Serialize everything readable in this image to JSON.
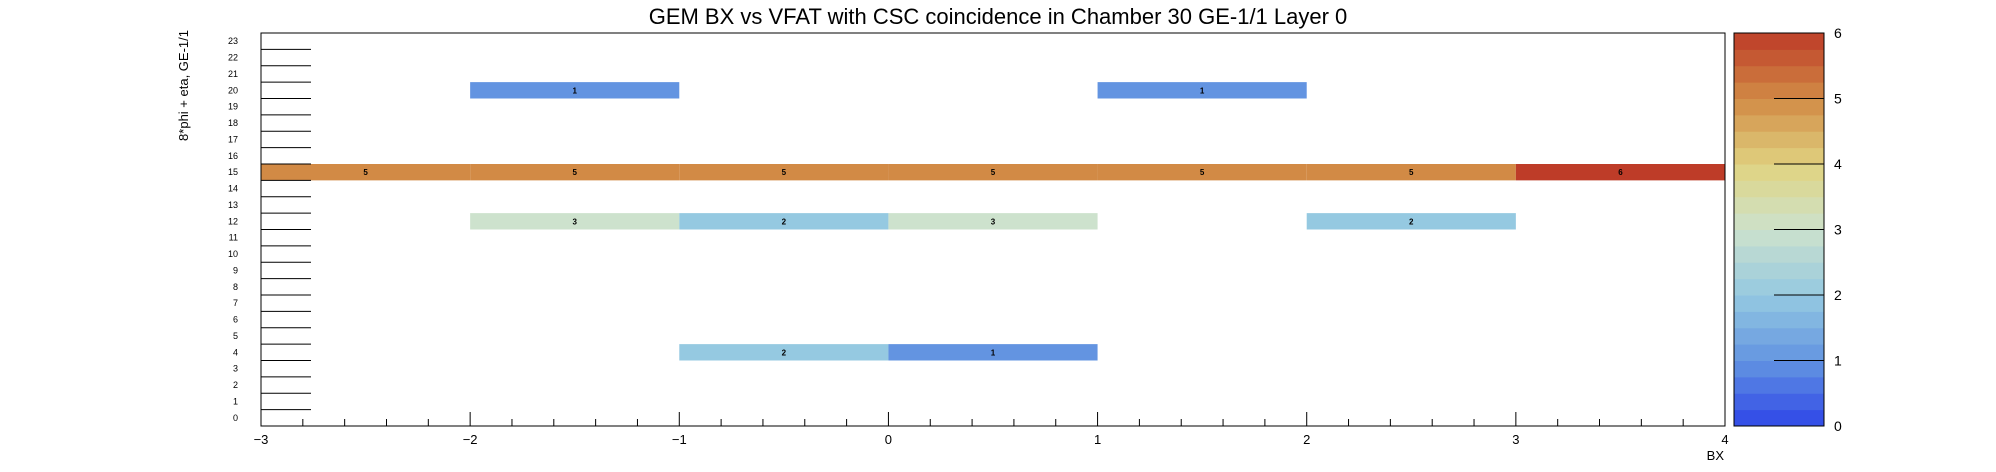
{
  "chart_data": {
    "type": "heatmap",
    "title": "GEM BX vs VFAT with CSC coincidence in Chamber 30 GE-1/1 Layer 0",
    "xlabel": "BX",
    "ylabel": "8*phi + eta, GE-1/1",
    "xlim": [
      -3,
      4
    ],
    "ylim": [
      0,
      24
    ],
    "x_ticks": [
      "−3",
      "−2",
      "−1",
      "0",
      "1",
      "2",
      "3",
      "4"
    ],
    "y_ticks": [
      "0",
      "1",
      "2",
      "3",
      "4",
      "5",
      "6",
      "7",
      "8",
      "9",
      "10",
      "11",
      "12",
      "13",
      "14",
      "15",
      "16",
      "17",
      "18",
      "19",
      "20",
      "21",
      "22",
      "23"
    ],
    "zlim": [
      0,
      6
    ],
    "z_ticks": [
      "0",
      "1",
      "2",
      "3",
      "4",
      "5",
      "6"
    ],
    "cells": [
      {
        "x0": -2,
        "x1": -1,
        "y": 20,
        "value": 1
      },
      {
        "x0": 1,
        "x1": 2,
        "y": 20,
        "value": 1
      },
      {
        "x0": -3,
        "x1": -2,
        "y": 15,
        "value": 5
      },
      {
        "x0": -2,
        "x1": -1,
        "y": 15,
        "value": 5
      },
      {
        "x0": -1,
        "x1": 0,
        "y": 15,
        "value": 5
      },
      {
        "x0": 0,
        "x1": 1,
        "y": 15,
        "value": 5
      },
      {
        "x0": 1,
        "x1": 2,
        "y": 15,
        "value": 5
      },
      {
        "x0": 2,
        "x1": 3,
        "y": 15,
        "value": 5
      },
      {
        "x0": 3,
        "x1": 4,
        "y": 15,
        "value": 6
      },
      {
        "x0": -2,
        "x1": -1,
        "y": 12,
        "value": 3
      },
      {
        "x0": -1,
        "x1": 0,
        "y": 12,
        "value": 2
      },
      {
        "x0": 0,
        "x1": 1,
        "y": 12,
        "value": 3
      },
      {
        "x0": 2,
        "x1": 3,
        "y": 12,
        "value": 2
      },
      {
        "x0": -1,
        "x1": 0,
        "y": 4,
        "value": 2
      },
      {
        "x0": 0,
        "x1": 1,
        "y": 4,
        "value": 1
      }
    ],
    "grid": false,
    "colorbar": "right"
  }
}
